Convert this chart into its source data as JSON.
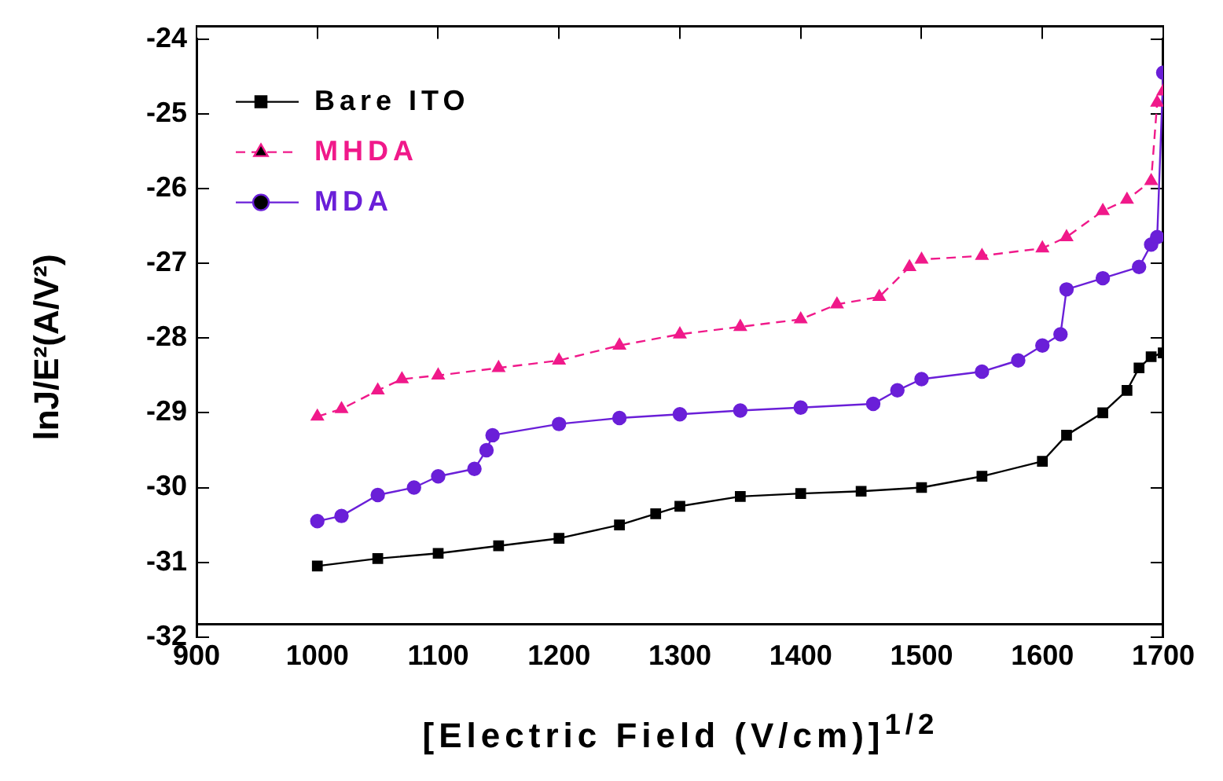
{
  "chart_data": {
    "type": "line",
    "xlabel": "[Electric Field (V/cm)]$^{1/2}$",
    "ylabel": "lnJ/E²(A/V²)",
    "xlim": [
      900,
      1700
    ],
    "xticks": [
      900,
      1000,
      1100,
      1200,
      1300,
      1400,
      1500,
      1600,
      1700
    ],
    "ylim": [
      -32,
      -24
    ],
    "yticks": [
      -32,
      -31,
      -30,
      -29,
      -28,
      -27,
      -26,
      -25,
      -24
    ],
    "grid": false,
    "legend": "top left",
    "series": [
      {
        "name": "Bare ITO",
        "color": "#000000",
        "marker": "square",
        "line_style": "solid",
        "x": [
          1000,
          1050,
          1100,
          1150,
          1200,
          1250,
          1280,
          1300,
          1350,
          1400,
          1450,
          1500,
          1550,
          1600,
          1620,
          1650,
          1670,
          1680,
          1690,
          1700
        ],
        "values": [
          -31.05,
          -30.95,
          -30.88,
          -30.78,
          -30.68,
          -30.5,
          -30.35,
          -30.25,
          -30.12,
          -30.08,
          -30.05,
          -30.0,
          -29.85,
          -29.65,
          -29.3,
          -29.0,
          -28.7,
          -28.4,
          -28.25,
          -28.2
        ]
      },
      {
        "name": "MHDA",
        "color": "#f0198a",
        "marker": "triangle",
        "line_style": "dashed",
        "x": [
          1000,
          1020,
          1050,
          1070,
          1100,
          1150,
          1200,
          1250,
          1300,
          1350,
          1400,
          1430,
          1465,
          1490,
          1500,
          1550,
          1600,
          1620,
          1650,
          1670,
          1690,
          1695,
          1700
        ],
        "values": [
          -29.05,
          -28.95,
          -28.7,
          -28.55,
          -28.5,
          -28.4,
          -28.3,
          -28.1,
          -27.95,
          -27.85,
          -27.75,
          -27.55,
          -27.45,
          -27.05,
          -26.95,
          -26.9,
          -26.8,
          -26.65,
          -26.3,
          -26.15,
          -25.9,
          -24.85,
          -24.7
        ]
      },
      {
        "name": "MDA",
        "color": "#6a1fd8",
        "marker": "circle",
        "line_style": "solid",
        "x": [
          1000,
          1020,
          1050,
          1080,
          1100,
          1130,
          1140,
          1145,
          1200,
          1250,
          1300,
          1350,
          1400,
          1460,
          1480,
          1500,
          1550,
          1580,
          1600,
          1615,
          1620,
          1650,
          1680,
          1690,
          1695,
          1700
        ],
        "values": [
          -30.45,
          -30.38,
          -30.1,
          -30.0,
          -29.85,
          -29.75,
          -29.5,
          -29.3,
          -29.15,
          -29.07,
          -29.02,
          -28.97,
          -28.93,
          -28.88,
          -28.7,
          -28.55,
          -28.45,
          -28.3,
          -28.1,
          -27.95,
          -27.35,
          -27.2,
          -27.05,
          -26.75,
          -26.65,
          -24.45
        ]
      }
    ]
  }
}
